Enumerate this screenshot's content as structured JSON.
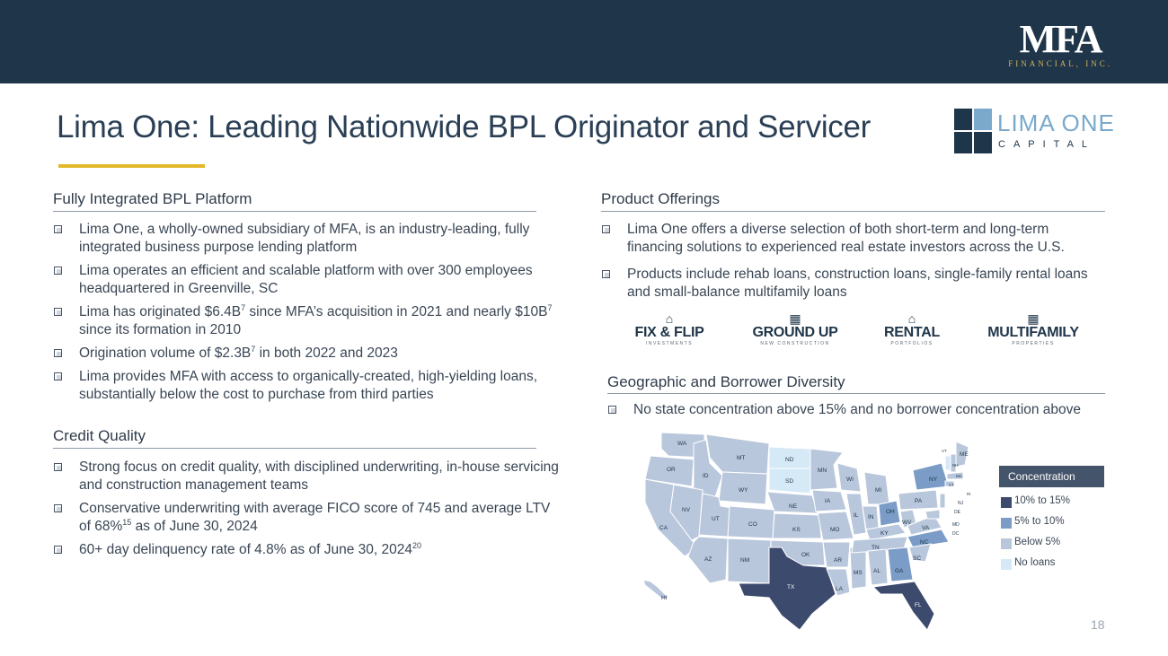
{
  "brand": {
    "name": "MFA",
    "subtitle": "FINANCIAL, INC."
  },
  "title": "Lima One: Leading Nationwide BPL Originator and Servicer",
  "lima_logo": {
    "name": "LIMA ONE",
    "sub": "CAPITAL"
  },
  "left": {
    "platform": {
      "heading": "Fully Integrated BPL Platform",
      "bullets": [
        {
          "text": "Lima One, a wholly-owned subsidiary of MFA, is an industry-leading, fully integrated business purpose lending platform"
        },
        {
          "text": "Lima operates an efficient and scalable platform with over 300 employees headquartered in Greenville, SC"
        },
        {
          "a": "Lima has originated $6.4B",
          "sup1": "7",
          "b": " since MFA’s acquisition in 2021 and nearly $10B",
          "sup2": "7",
          "c": " since its formation in 2010"
        },
        {
          "a": "Origination volume of $2.3B",
          "sup1": "7",
          "b": " in both 2022 and 2023"
        },
        {
          "text": "Lima provides MFA with access to organically-created, high-yielding loans, substantially below the cost to purchase from third parties"
        }
      ]
    },
    "credit": {
      "heading": "Credit Quality",
      "bullets": [
        {
          "text": "Strong focus on credit quality, with disciplined underwriting, in-house servicing and construction management teams"
        },
        {
          "a": "Conservative underwriting with average FICO score of 745 and average LTV of 68%",
          "sup1": "15",
          "b": " as of June 30, 2024"
        },
        {
          "a": "60+ day delinquency rate of 4.8% as of June 30, 2024",
          "sup1": "20"
        }
      ]
    }
  },
  "right": {
    "products": {
      "heading": "Product Offerings",
      "bullets": [
        "Lima One offers a diverse selection of both short-term and long-term financing solutions to experienced real estate investors across the U.S.",
        "Products include rehab loans, construction loans, single-family rental loans and small-balance multifamily loans"
      ],
      "logos": [
        {
          "name": "FIX & FLIP",
          "tag": "INVESTMENTS",
          "icon": "house-tools-icon"
        },
        {
          "name": "GROUND UP",
          "tag": "NEW CONSTRUCTION",
          "icon": "building-crane-icon"
        },
        {
          "name": "RENTAL",
          "tag": "PORTFOLIOS",
          "icon": "house-key-icon"
        },
        {
          "name": "MULTIFAMILY",
          "tag": "PROPERTIES",
          "icon": "apartment-icon"
        }
      ]
    },
    "geo": {
      "heading": "Geographic and Borrower Diversity",
      "bullet": "No state concentration above 15% and no borrower concentration above",
      "legend": {
        "title": "Concentration",
        "items": [
          {
            "label": "10% to 15%",
            "color": "#3c4a6e"
          },
          {
            "label": "5% to 10%",
            "color": "#7a9cc6"
          },
          {
            "label": "Below 5%",
            "color": "#b9c7dc"
          },
          {
            "label": "No loans",
            "color": "#d6e9f7"
          }
        ]
      },
      "states": [
        "WA",
        "OR",
        "CA",
        "ID",
        "NV",
        "MT",
        "WY",
        "UT",
        "AZ",
        "CO",
        "NM",
        "ND",
        "SD",
        "NE",
        "KS",
        "OK",
        "TX",
        "MN",
        "IA",
        "MO",
        "AR",
        "LA",
        "WI",
        "IL",
        "MS",
        "MI",
        "IN",
        "KY",
        "TN",
        "AL",
        "OH",
        "GA",
        "FL",
        "WV",
        "VA",
        "NC",
        "SC",
        "PA",
        "NY",
        "VT",
        "NH",
        "ME",
        "MA",
        "RI",
        "CT",
        "NJ",
        "DE",
        "MD",
        "DC",
        "HI"
      ]
    }
  },
  "page_number": "18"
}
